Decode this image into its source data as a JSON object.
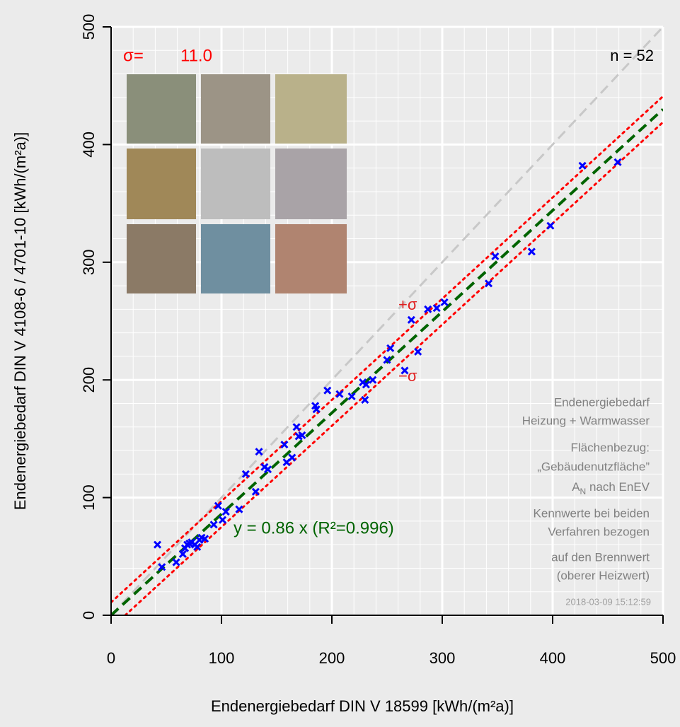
{
  "chart_data": {
    "type": "scatter",
    "x_label": "Endenergiebedarf DIN V 18599 [kWh/(m²a)]",
    "y_label": "Endenergiebedarf DIN V 4108-6 / 4701-10 [kWh/(m²a)]",
    "x": [
      42,
      46,
      59,
      65,
      67,
      69,
      71,
      73,
      76,
      78,
      80,
      82,
      85,
      93,
      97,
      101,
      104,
      116,
      122,
      131,
      134,
      139,
      142,
      157,
      159,
      164,
      168,
      170,
      173,
      185,
      186,
      196,
      207,
      218,
      228,
      230,
      231,
      237,
      250,
      253,
      266,
      272,
      278,
      287,
      295,
      302,
      342,
      348,
      381,
      398,
      427,
      459
    ],
    "y": [
      60,
      41,
      45,
      52,
      57,
      60,
      61,
      62,
      60,
      58,
      64,
      66,
      65,
      77,
      93,
      81,
      88,
      90,
      120,
      105,
      139,
      126,
      124,
      145,
      130,
      134,
      160,
      152,
      153,
      178,
      175,
      191,
      188,
      186,
      198,
      183,
      196,
      200,
      217,
      227,
      208,
      251,
      224,
      260,
      261,
      266,
      282,
      305,
      309,
      331,
      382,
      385
    ],
    "color": "#0000ff",
    "xlim": [
      0,
      500
    ],
    "ylim": [
      0,
      500
    ],
    "xticks": [
      0,
      100,
      200,
      300,
      400,
      500
    ],
    "yticks": [
      0,
      100,
      200,
      300,
      400,
      500
    ],
    "grid": true,
    "fit_slope": 0.86,
    "fit_label": "y = 0.86 x  (R²=0.996)",
    "sigma_label": "σ=",
    "sigma": {
      "value": 11.0,
      "label": "11.0"
    },
    "plus_sigma_label": "+σ",
    "minus_sigma_label": "−σ",
    "n_label": "n = 52",
    "notes": [
      "Endenergiebedarf",
      "Heizung + Warmwasser",
      "Flächenbezug:",
      "„Gebäudenutzfläche”",
      "A",
      "N",
      " nach EnEV",
      "Kennwerte bei beiden",
      "Verfahren bezogen",
      "auf den Brennwert",
      "(oberer Heizwert)"
    ],
    "timestamp": "2018-03-09 15:12:59"
  }
}
